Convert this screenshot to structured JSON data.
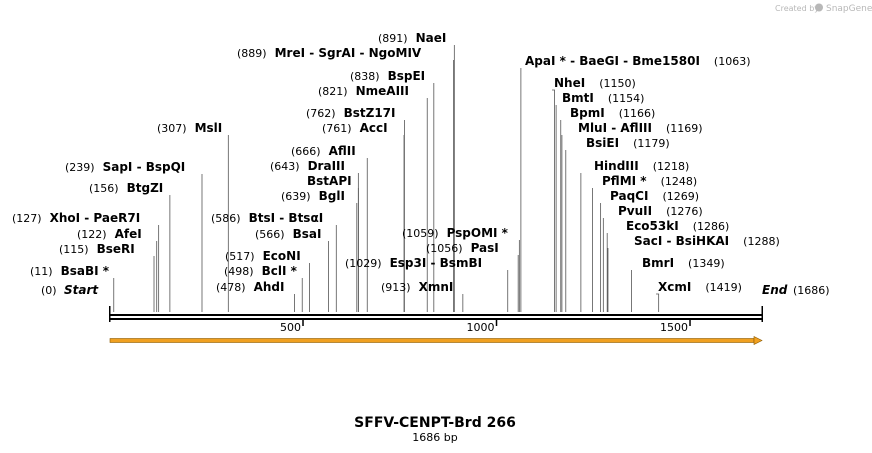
{
  "credit": {
    "text": "Created by",
    "brand": "SnapGene"
  },
  "map": {
    "name": "SFFV-CENPT-Brd 266",
    "length_label": "1686 bp",
    "length": 1686,
    "start_label": "Start",
    "start_pos": "(0)",
    "end_label": "End",
    "end_pos": "(1686)",
    "ticks": [
      {
        "pos": 500,
        "label": "500"
      },
      {
        "pos": 1000,
        "label": "1000"
      },
      {
        "pos": 1500,
        "label": "1500"
      }
    ],
    "sites": [
      {
        "pos": 11,
        "pos_label": "(11)",
        "name": "BsaBI *"
      },
      {
        "pos": 115,
        "pos_label": "(115)",
        "name": "BseRI"
      },
      {
        "pos": 122,
        "pos_label": "(122)",
        "name": "AfeI"
      },
      {
        "pos": 127,
        "pos_label": "(127)",
        "name": "XhoI  - PaeR7I"
      },
      {
        "pos": 156,
        "pos_label": "(156)",
        "name": "BtgZI"
      },
      {
        "pos": 239,
        "pos_label": "(239)",
        "name": "SapI  - BspQI"
      },
      {
        "pos": 307,
        "pos_label": "(307)",
        "name": "MslI"
      },
      {
        "pos": 478,
        "pos_label": "(478)",
        "name": "AhdI"
      },
      {
        "pos": 498,
        "pos_label": "(498)",
        "name": "BclI *"
      },
      {
        "pos": 517,
        "pos_label": "(517)",
        "name": "EcoNI"
      },
      {
        "pos": 566,
        "pos_label": "(566)",
        "name": "BsaI"
      },
      {
        "pos": 586,
        "pos_label": "(586)",
        "name": "BtsI  - BtsαI"
      },
      {
        "pos": 639,
        "pos_label": "(639)",
        "name": "BglI"
      },
      {
        "pos": 643,
        "pos_label": "",
        "name": "BstAPI"
      },
      {
        "pos": 643,
        "pos_label": "(643)",
        "name": "DraIII"
      },
      {
        "pos": 666,
        "pos_label": "(666)",
        "name": "AflII"
      },
      {
        "pos": 761,
        "pos_label": "(761)",
        "name": "AccI"
      },
      {
        "pos": 762,
        "pos_label": "(762)",
        "name": "BstZ17I"
      },
      {
        "pos": 821,
        "pos_label": "(821)",
        "name": "NmeAIII"
      },
      {
        "pos": 838,
        "pos_label": "(838)",
        "name": "BspEI"
      },
      {
        "pos": 889,
        "pos_label": "(889)",
        "name": "MreI  - SgrAI  - NgoMIV"
      },
      {
        "pos": 891,
        "pos_label": "(891)",
        "name": "NaeI"
      },
      {
        "pos": 913,
        "pos_label": "(913)",
        "name": "XmnI"
      },
      {
        "pos": 1029,
        "pos_label": "(1029)",
        "name": "Esp3I  - BsmBI"
      },
      {
        "pos": 1056,
        "pos_label": "(1056)",
        "name": "PasI"
      },
      {
        "pos": 1059,
        "pos_label": "(1059)",
        "name": "PspOMI *"
      },
      {
        "pos": 1063,
        "pos_label": "(1063)",
        "name": "ApaI *  - BaeGI  - Bme1580I"
      },
      {
        "pos": 1150,
        "pos_label": "(1150)",
        "name": "NheI"
      },
      {
        "pos": 1154,
        "pos_label": "(1154)",
        "name": "BmtI"
      },
      {
        "pos": 1166,
        "pos_label": "(1166)",
        "name": "BpmI"
      },
      {
        "pos": 1169,
        "pos_label": "(1169)",
        "name": "MluI  - AflIII"
      },
      {
        "pos": 1179,
        "pos_label": "(1179)",
        "name": "BsiEI"
      },
      {
        "pos": 1218,
        "pos_label": "(1218)",
        "name": "HindIII"
      },
      {
        "pos": 1248,
        "pos_label": "(1248)",
        "name": "PflMI *"
      },
      {
        "pos": 1269,
        "pos_label": "(1269)",
        "name": "PaqCI"
      },
      {
        "pos": 1276,
        "pos_label": "(1276)",
        "name": "PvuII"
      },
      {
        "pos": 1286,
        "pos_label": "(1286)",
        "name": "Eco53kI"
      },
      {
        "pos": 1288,
        "pos_label": "(1288)",
        "name": "SacI  - BsiHKAI"
      },
      {
        "pos": 1349,
        "pos_label": "(1349)",
        "name": "BmrI"
      },
      {
        "pos": 1419,
        "pos_label": "(1419)",
        "name": "XcmI"
      }
    ]
  },
  "colors": {
    "feature_arrow": "#f0a020",
    "feature_outline": "#8a5a00",
    "backbone": "#000000"
  }
}
